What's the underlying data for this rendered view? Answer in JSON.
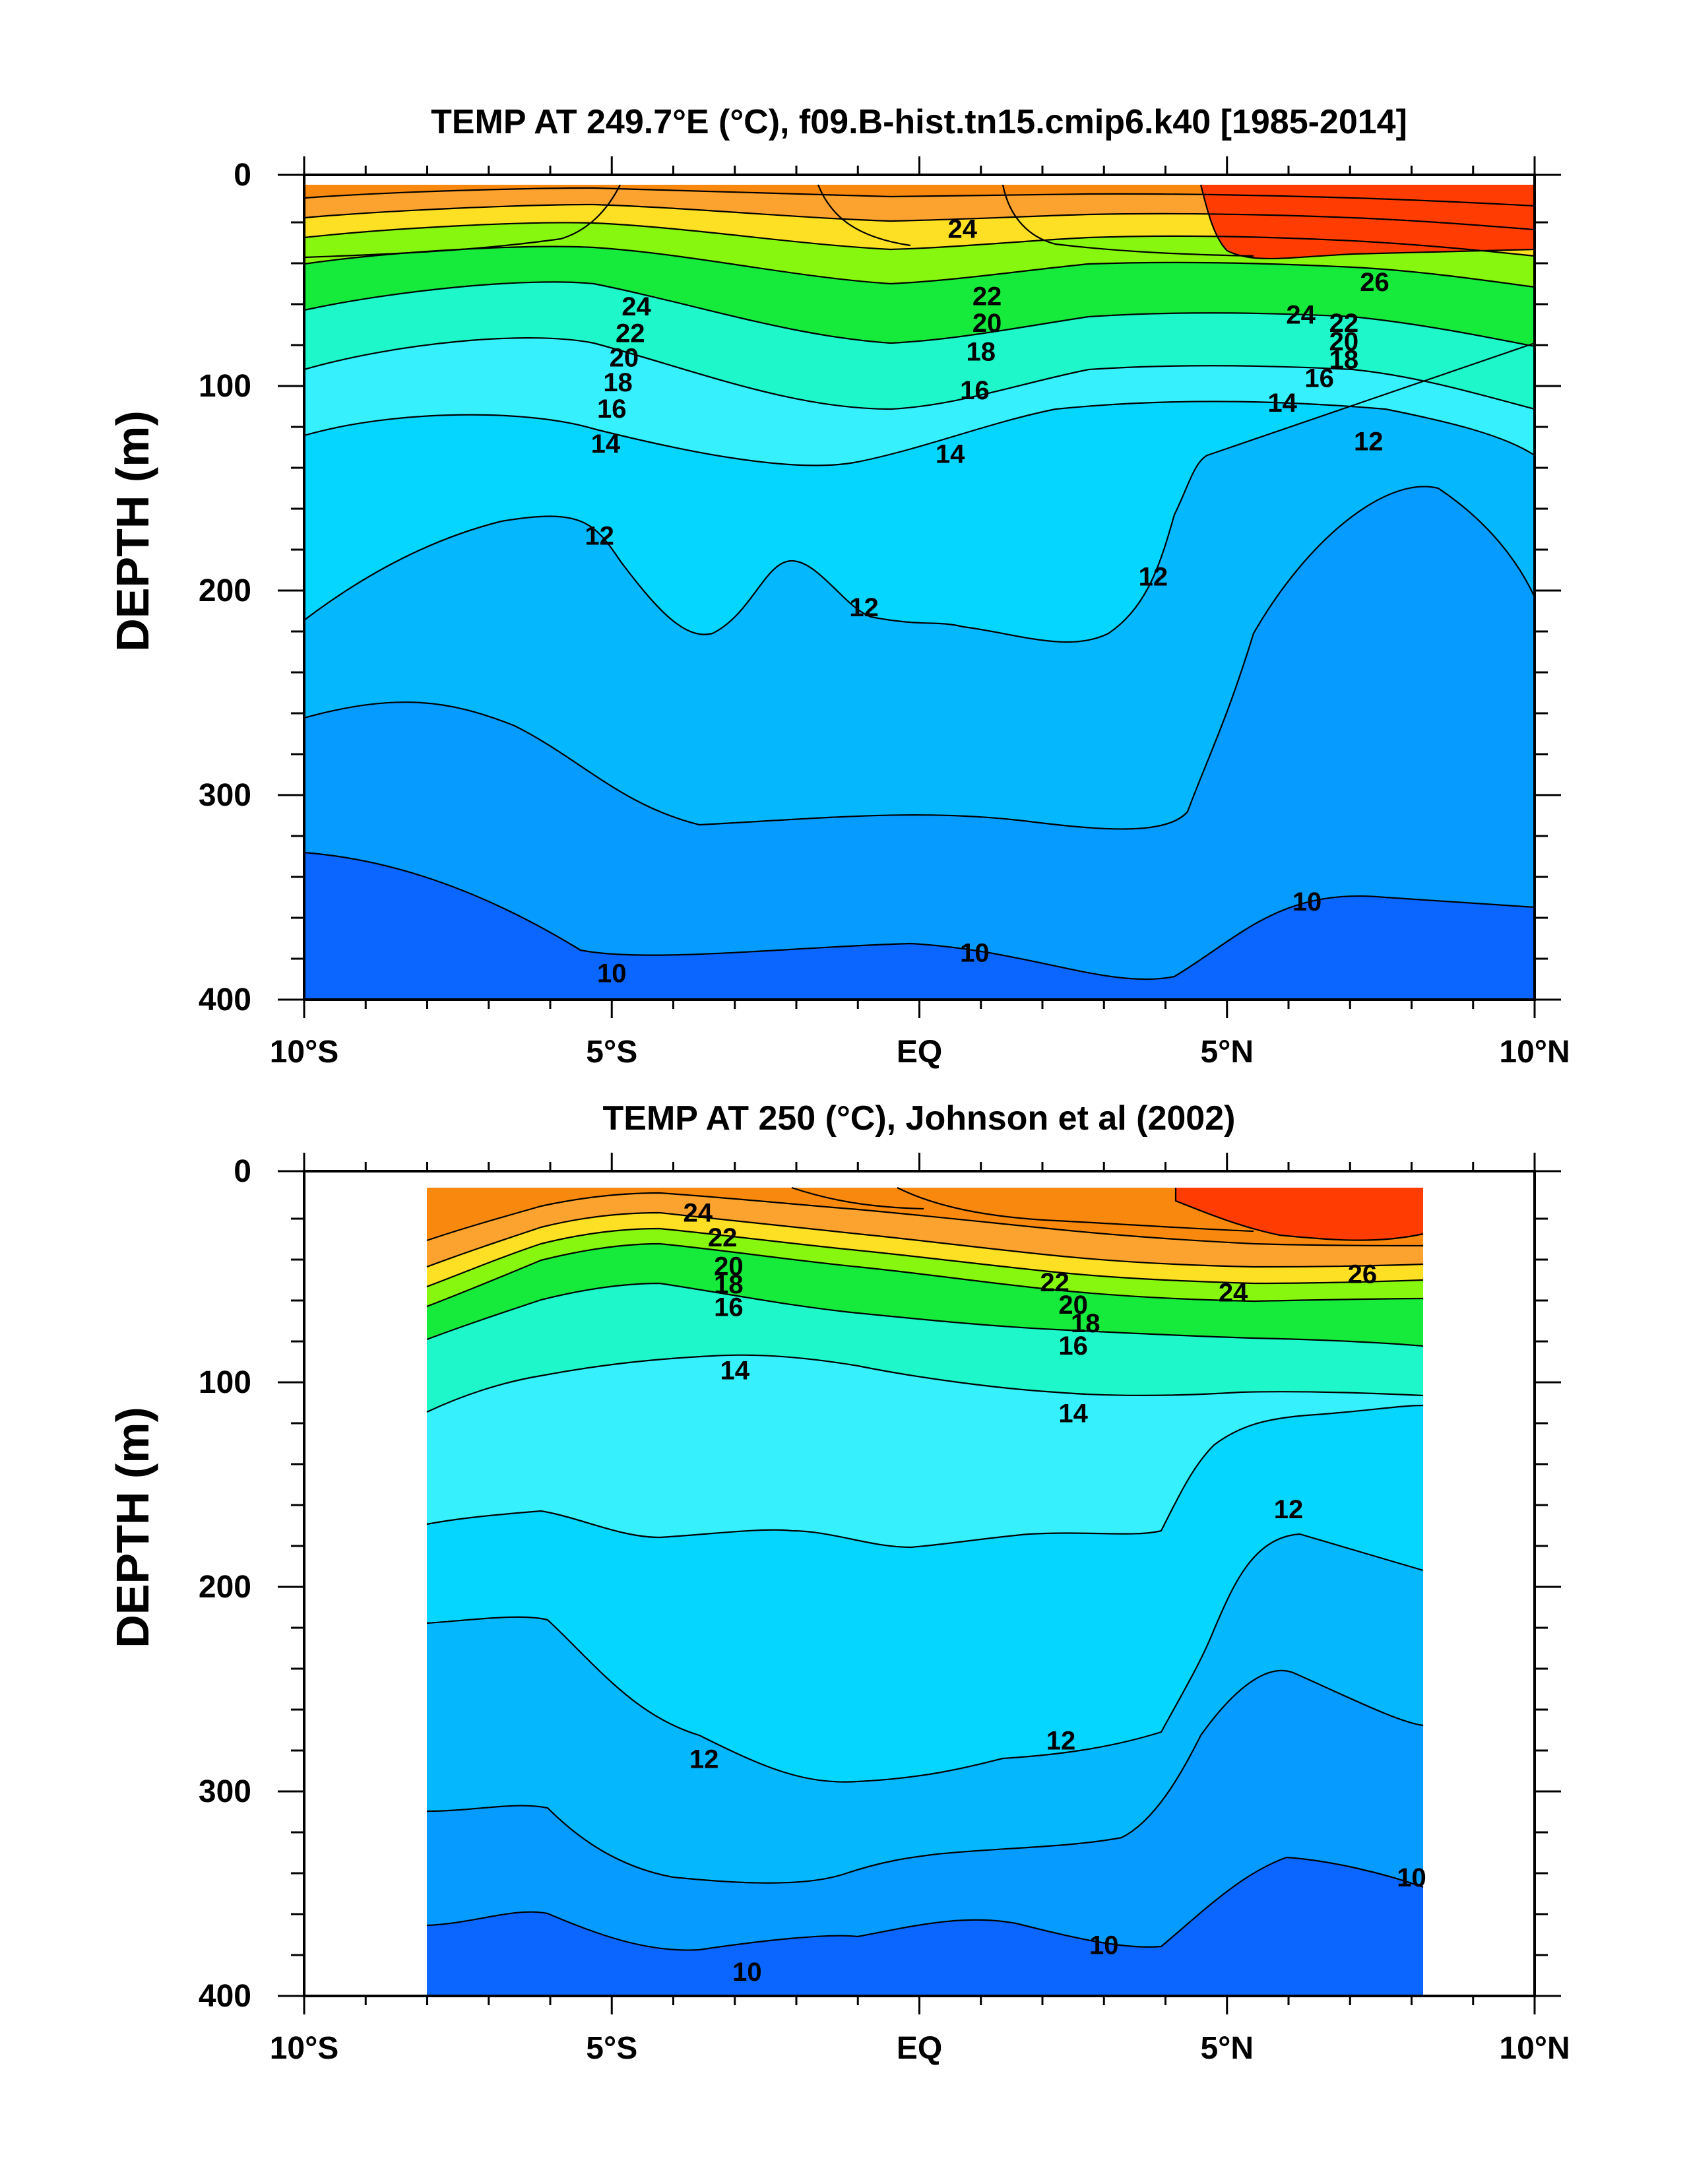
{
  "chart_data": [
    {
      "type": "heatmap",
      "subtype": "filled-contour depth-latitude section",
      "title": "TEMP AT 249.7°E (°C), f09.B-hist.tn15.cmip6.k40 [1985-2014]",
      "xlabel": "",
      "ylabel": "DEPTH (m)",
      "xlim": [
        -10,
        10
      ],
      "ylim": [
        400,
        0
      ],
      "x_tick_values": [
        -10,
        -5,
        0,
        5,
        10
      ],
      "x_tick_labels": [
        "10°S",
        "5°S",
        "EQ",
        "5°N",
        "10°N"
      ],
      "y_tick_values": [
        0,
        100,
        200,
        300,
        400
      ],
      "y_tick_labels": [
        "0",
        "100",
        "200",
        "300",
        "400"
      ],
      "data_x_range": [
        -10,
        10
      ],
      "contour_interval": 1,
      "contour_labels": [
        {
          "text": "24",
          "x": 0.7,
          "y": 23
        },
        {
          "text": "22",
          "x": 1.1,
          "y": 56
        },
        {
          "text": "20",
          "x": 1.1,
          "y": 69
        },
        {
          "text": "18",
          "x": 1.0,
          "y": 83
        },
        {
          "text": "16",
          "x": 0.9,
          "y": 102
        },
        {
          "text": "14",
          "x": 0.5,
          "y": 133
        },
        {
          "text": "12",
          "x": 7.3,
          "y": 127
        },
        {
          "text": "12",
          "x": -5.2,
          "y": 173
        },
        {
          "text": "12",
          "x": -0.9,
          "y": 208
        },
        {
          "text": "12",
          "x": 3.8,
          "y": 193
        },
        {
          "text": "10",
          "x": -5.0,
          "y": 387
        },
        {
          "text": "10",
          "x": 0.9,
          "y": 377
        },
        {
          "text": "10",
          "x": 6.3,
          "y": 352
        },
        {
          "text": "24",
          "x": -4.6,
          "y": 61
        },
        {
          "text": "22",
          "x": -4.7,
          "y": 74
        },
        {
          "text": "20",
          "x": -4.8,
          "y": 86
        },
        {
          "text": "18",
          "x": -4.9,
          "y": 98
        },
        {
          "text": "16",
          "x": -5.0,
          "y": 111
        },
        {
          "text": "14",
          "x": -5.1,
          "y": 128
        },
        {
          "text": "26",
          "x": 7.4,
          "y": 49
        },
        {
          "text": "24",
          "x": 6.2,
          "y": 65
        },
        {
          "text": "22",
          "x": 6.9,
          "y": 69
        },
        {
          "text": "20",
          "x": 6.9,
          "y": 78
        },
        {
          "text": "18",
          "x": 6.9,
          "y": 87
        },
        {
          "text": "16",
          "x": 6.5,
          "y": 96
        },
        {
          "text": "14",
          "x": 5.9,
          "y": 108
        }
      ]
    },
    {
      "type": "heatmap",
      "subtype": "filled-contour depth-latitude section",
      "title": "TEMP AT 250 (°C), Johnson et al (2002)",
      "xlabel": "",
      "ylabel": "DEPTH (m)",
      "xlim": [
        -10,
        10
      ],
      "ylim": [
        400,
        0
      ],
      "x_tick_values": [
        -10,
        -5,
        0,
        5,
        10
      ],
      "x_tick_labels": [
        "10°S",
        "5°S",
        "EQ",
        "5°N",
        "10°N"
      ],
      "y_tick_values": [
        0,
        100,
        200,
        300,
        400
      ],
      "y_tick_labels": [
        "0",
        "100",
        "200",
        "300",
        "400"
      ],
      "data_x_range": [
        -8,
        8.2
      ],
      "contour_interval": 1,
      "contour_labels": [
        {
          "text": "24",
          "x": -3.6,
          "y": 17
        },
        {
          "text": "22",
          "x": -3.2,
          "y": 29
        },
        {
          "text": "20",
          "x": -3.1,
          "y": 43
        },
        {
          "text": "18",
          "x": -3.1,
          "y": 52
        },
        {
          "text": "16",
          "x": -3.1,
          "y": 63
        },
        {
          "text": "14",
          "x": -3.0,
          "y": 94
        },
        {
          "text": "22",
          "x": 2.2,
          "y": 51
        },
        {
          "text": "20",
          "x": 2.5,
          "y": 62
        },
        {
          "text": "18",
          "x": 2.7,
          "y": 71
        },
        {
          "text": "16",
          "x": 2.5,
          "y": 82
        },
        {
          "text": "14",
          "x": 2.5,
          "y": 115
        },
        {
          "text": "24",
          "x": 5.1,
          "y": 56
        },
        {
          "text": "26",
          "x": 7.2,
          "y": 47
        },
        {
          "text": "12",
          "x": 6.0,
          "y": 162
        },
        {
          "text": "12",
          "x": -3.5,
          "y": 284
        },
        {
          "text": "12",
          "x": 2.3,
          "y": 275
        },
        {
          "text": "10",
          "x": -2.8,
          "y": 388
        },
        {
          "text": "10",
          "x": 3.0,
          "y": 375
        },
        {
          "text": "10",
          "x": 8.0,
          "y": 342
        }
      ]
    }
  ],
  "colors": {
    "t26_plus": "#ff3d03",
    "t24_26": "#f8890e",
    "t22_24": "#fba32e",
    "t20_22": "#fde023",
    "t18_20": "#87f710",
    "t16_18": "#16eb3c",
    "t14_16": "#1ef7ca",
    "t13_14": "#36f0fe",
    "t12_13": "#05d6ff",
    "t11_12": "#05b8fe",
    "t10_11": "#059bff",
    "t_below_10": "#0a66ff",
    "contour_line": "#000000"
  }
}
